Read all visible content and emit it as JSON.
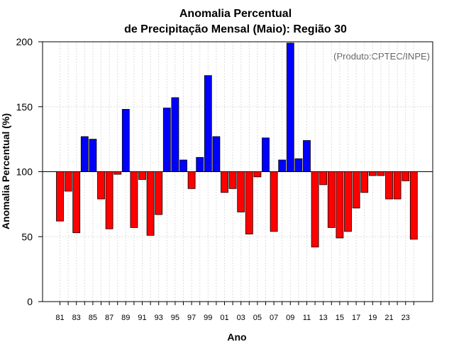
{
  "chart_data": {
    "type": "bar",
    "title_line1": "Anomalia Percentual",
    "title_line2": "de Precipitação Mensal (Maio): Região 30",
    "xlabel": "Ano",
    "ylabel": "Anomalia Percentual (%)",
    "credit": "(Produto:CPTEC/INPE)",
    "baseline": 100,
    "ylim": [
      0,
      200
    ],
    "yticks": [
      0,
      50,
      100,
      150,
      200
    ],
    "years": [
      1981,
      1982,
      1983,
      1984,
      1985,
      1986,
      1987,
      1988,
      1989,
      1990,
      1991,
      1992,
      1993,
      1994,
      1995,
      1996,
      1997,
      1998,
      1999,
      2000,
      2001,
      2002,
      2003,
      2004,
      2005,
      2006,
      2007,
      2008,
      2009,
      2010,
      2011,
      2012,
      2013,
      2014,
      2015,
      2016,
      2017,
      2018,
      2019,
      2020,
      2021,
      2022,
      2023,
      2024
    ],
    "xtick_labels": [
      "81",
      "83",
      "85",
      "87",
      "89",
      "91",
      "93",
      "95",
      "97",
      "99",
      "01",
      "03",
      "05",
      "07",
      "09",
      "11",
      "13",
      "15",
      "17",
      "19",
      "21",
      "23"
    ],
    "values": [
      62,
      85,
      53,
      127,
      125,
      79,
      56,
      98,
      148,
      57,
      94,
      51,
      67,
      149,
      157,
      109,
      87,
      111,
      174,
      127,
      84,
      87,
      69,
      52,
      96,
      126,
      54,
      109,
      199,
      110,
      124,
      42,
      90,
      57,
      49,
      54,
      72,
      84,
      97,
      97,
      79,
      79,
      93,
      48
    ],
    "colors": {
      "above": "#0000ff",
      "below": "#ff0000"
    }
  }
}
